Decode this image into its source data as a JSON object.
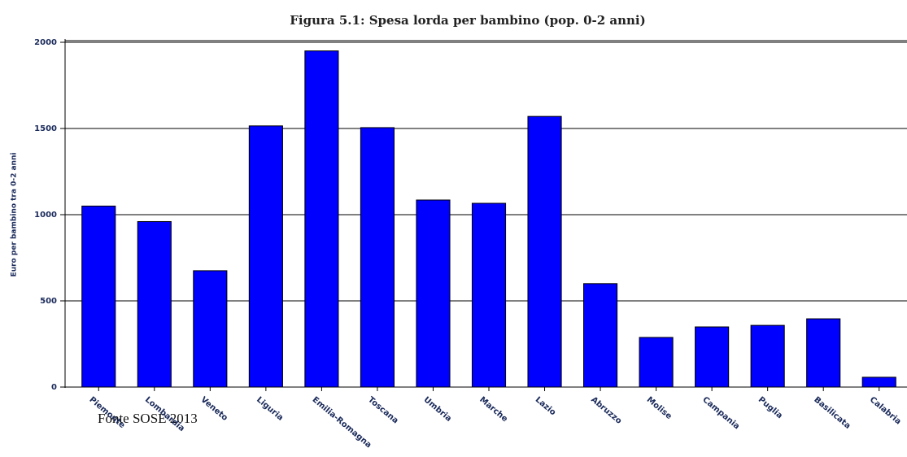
{
  "chart_data": {
    "type": "bar",
    "title": "Figura 5.1: Spesa lorda per bambino (pop. 0-2 anni)",
    "y_label": "Euro per bambino tra 0-2 anni",
    "source": "Fonte SOSE 2013",
    "categories": [
      "Piemonte",
      "Lombardia",
      "Veneto",
      "Liguria",
      "Emilia-Romagna",
      "Toscana",
      "Umbria",
      "Marche",
      "Lazio",
      "Abruzzo",
      "Molise",
      "Campania",
      "Puglia",
      "Basilicata",
      "Calabria"
    ],
    "values": [
      1050,
      960,
      675,
      1515,
      1950,
      1505,
      1085,
      1066,
      1570,
      600,
      288,
      349,
      358,
      396,
      57
    ],
    "color": "#0000ff",
    "ylim": [
      0,
      2000
    ],
    "yticks": [
      0,
      500,
      1000,
      1500,
      2000
    ],
    "grid": true
  }
}
